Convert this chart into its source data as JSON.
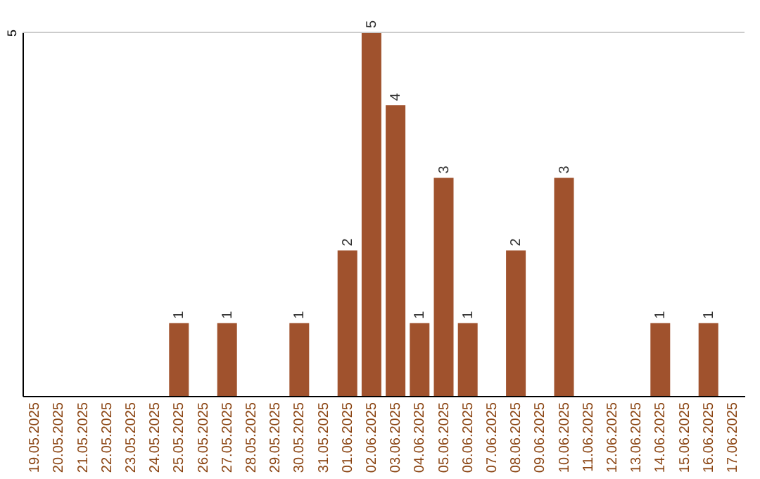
{
  "chart_data": {
    "type": "bar",
    "categories": [
      "19.05.2025",
      "20.05.2025",
      "21.05.2025",
      "22.05.2025",
      "23.05.2025",
      "24.05.2025",
      "25.05.2025",
      "26.05.2025",
      "27.05.2025",
      "28.05.2025",
      "29.05.2025",
      "30.05.2025",
      "31.05.2025",
      "01.06.2025",
      "02.06.2025",
      "03.06.2025",
      "04.06.2025",
      "05.06.2025",
      "06.06.2025",
      "07.06.2025",
      "08.06.2025",
      "09.06.2025",
      "10.06.2025",
      "11.06.2025",
      "12.06.2025",
      "13.06.2025",
      "14.06.2025",
      "15.06.2025",
      "16.06.2025",
      "17.06.2025"
    ],
    "values": [
      0,
      0,
      0,
      0,
      0,
      0,
      1,
      0,
      1,
      0,
      0,
      1,
      0,
      2,
      5,
      4,
      1,
      3,
      1,
      0,
      2,
      0,
      3,
      0,
      0,
      0,
      1,
      0,
      1,
      0
    ],
    "value_labels": [
      null,
      null,
      null,
      null,
      null,
      null,
      "1",
      null,
      "1",
      null,
      null,
      "1",
      null,
      "2",
      "5",
      "4",
      "1",
      "3",
      "1",
      null,
      "2",
      null,
      "3",
      null,
      null,
      null,
      "1",
      null,
      "1",
      null
    ],
    "color": "#a0522d",
    "ylim": [
      0,
      5
    ],
    "yticks": [
      5
    ],
    "ref_lines": [
      {
        "axis": "y",
        "value": 5,
        "color": "#cccccc"
      }
    ]
  }
}
